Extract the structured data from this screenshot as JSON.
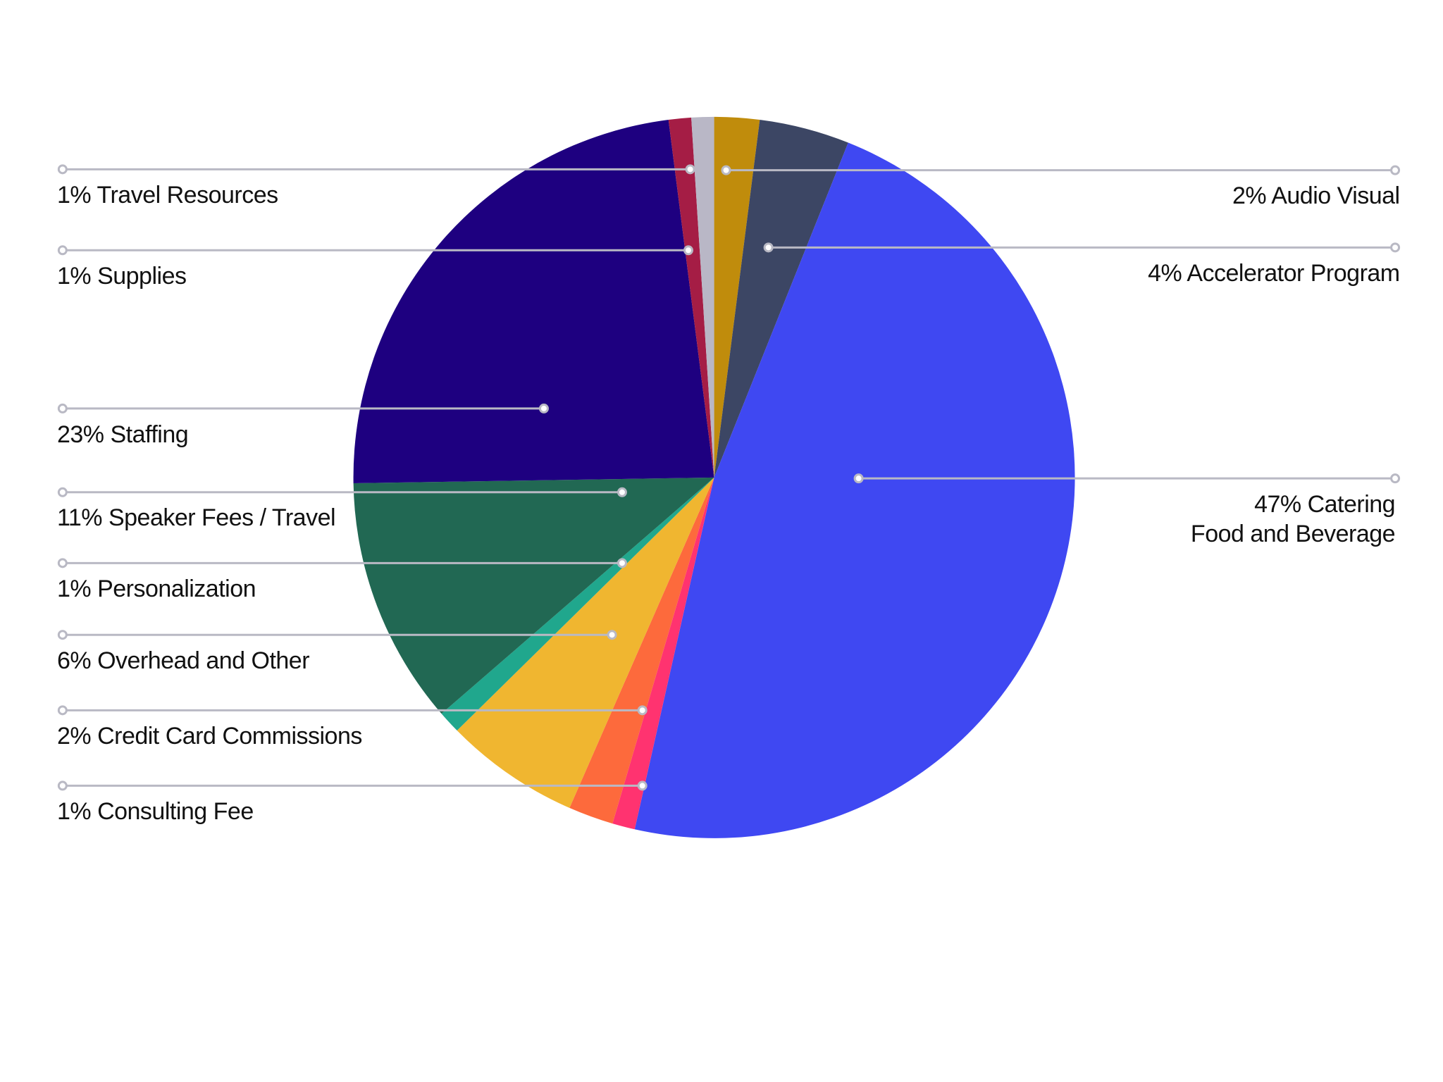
{
  "chart_data": {
    "type": "pie",
    "categories": [
      "Audio Visual",
      "Accelerator Program",
      "Catering\nFood and Beverage",
      "Consulting Fee",
      "Credit Card Commissions",
      "Overhead and Other",
      "Personalization",
      "Speaker Fees / Travel",
      "Staffing",
      "Supplies",
      "Travel Resources"
    ],
    "values": [
      2,
      4,
      47,
      1,
      2,
      6,
      1,
      11,
      23,
      1,
      1
    ],
    "value_labels": [
      "2%",
      "4%",
      "47%",
      "1%",
      "2%",
      "6%",
      "1%",
      "11%",
      "23%",
      "1%",
      "1%"
    ],
    "colors": [
      "#c08c0c",
      "#3c4664",
      "#3f48f2",
      "#ff3370",
      "#fd6a3c",
      "#f0b630",
      "#20a78d",
      "#216853",
      "#1e0080",
      "#a51d45",
      "#b9b7c6"
    ]
  }
}
